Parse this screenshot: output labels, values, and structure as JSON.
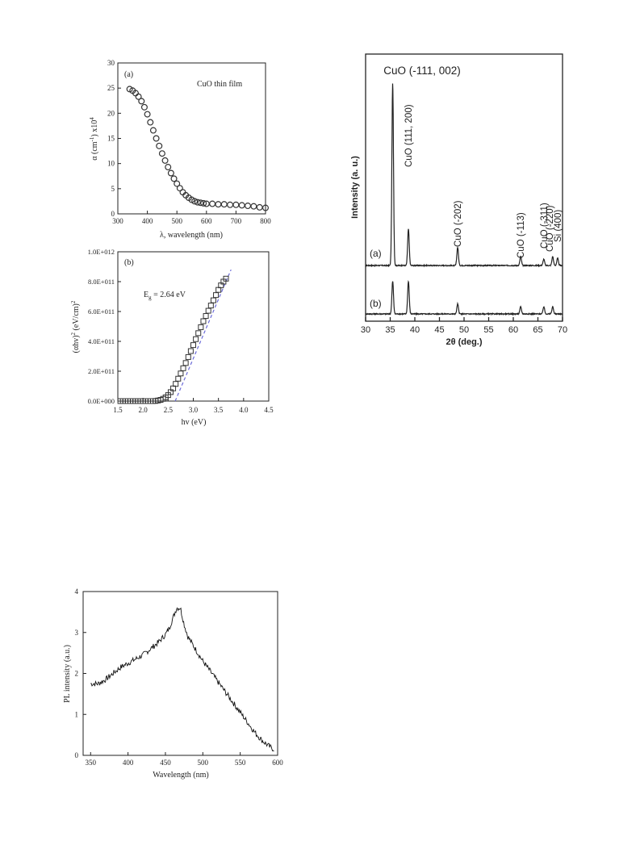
{
  "chart_data": [
    {
      "type": "scatter",
      "panel_label": "(a)",
      "annotation": "CuO thin film",
      "xlabel": "λ, wavelength (nm)",
      "ylabel_parts": [
        "α (cm",
        "-1",
        ") x10",
        "4"
      ],
      "xlim": [
        300,
        800
      ],
      "ylim": [
        0,
        30
      ],
      "xticks": [
        300,
        400,
        500,
        600,
        700,
        800
      ],
      "yticks": [
        0,
        5,
        10,
        15,
        20,
        25,
        30
      ],
      "x": [
        340,
        350,
        360,
        370,
        380,
        390,
        400,
        410,
        420,
        430,
        440,
        450,
        460,
        470,
        480,
        490,
        500,
        510,
        520,
        530,
        540,
        550,
        560,
        570,
        580,
        590,
        600,
        620,
        640,
        660,
        680,
        700,
        720,
        740,
        760,
        780,
        800
      ],
      "y": [
        24.8,
        24.5,
        24.0,
        23.3,
        22.4,
        21.2,
        19.8,
        18.2,
        16.6,
        15.0,
        13.5,
        12.0,
        10.6,
        9.3,
        8.1,
        7.0,
        6.0,
        5.1,
        4.3,
        3.7,
        3.2,
        2.8,
        2.5,
        2.3,
        2.2,
        2.1,
        2.0,
        2.0,
        1.9,
        1.9,
        1.8,
        1.8,
        1.7,
        1.6,
        1.5,
        1.3,
        1.2
      ],
      "color": "#333333"
    },
    {
      "type": "scatter",
      "panel_label": "(b)",
      "annotation_parts": [
        "E",
        "g",
        " = 2.64 eV"
      ],
      "xlabel": "hv (eV)",
      "ylabel_parts": [
        "(αhv)",
        "2",
        " (eV/cm)",
        "2"
      ],
      "xlim": [
        1.5,
        4.5
      ],
      "ylim": [
        0,
        1000000000000.0
      ],
      "xticks": [
        "1.5",
        "2.0",
        "2.5",
        "3.0",
        "3.5",
        "4.0",
        "4.5"
      ],
      "yticks": [
        "0.0E+000",
        "2.0E+011",
        "4.0E+011",
        "6.0E+011",
        "8.0E+011",
        "1.0E+012"
      ],
      "x": [
        1.55,
        1.6,
        1.65,
        1.7,
        1.75,
        1.8,
        1.85,
        1.9,
        1.95,
        2.0,
        2.05,
        2.1,
        2.15,
        2.2,
        2.25,
        2.3,
        2.35,
        2.4,
        2.45,
        2.5,
        2.55,
        2.6,
        2.65,
        2.7,
        2.75,
        2.8,
        2.85,
        2.9,
        2.95,
        3.0,
        3.05,
        3.1,
        3.15,
        3.2,
        3.25,
        3.3,
        3.35,
        3.4,
        3.45,
        3.5,
        3.55,
        3.6,
        3.65
      ],
      "y": [
        0.0,
        0.0,
        0.0,
        0.0,
        0.0,
        0.0,
        0.0,
        0.0,
        0.0,
        0.0,
        0.0,
        0.0,
        0.0,
        0.0,
        1000000000.0,
        4000000000.0,
        8000000000.0,
        15000000000.0,
        25000000000.0,
        40000000000.0,
        60000000000.0,
        85000000000.0,
        115000000000.0,
        150000000000.0,
        185000000000.0,
        220000000000.0,
        255000000000.0,
        295000000000.0,
        335000000000.0,
        375000000000.0,
        415000000000.0,
        455000000000.0,
        495000000000.0,
        535000000000.0,
        570000000000.0,
        605000000000.0,
        640000000000.0,
        675000000000.0,
        710000000000.0,
        745000000000.0,
        775000000000.0,
        800000000000.0,
        820000000000.0
      ],
      "fit_line": {
        "x": [
          2.64,
          3.75
        ],
        "y": [
          0,
          880000000000.0
        ],
        "color": "#6a6ad8"
      },
      "color": "#333333"
    },
    {
      "type": "line",
      "title": "CuO (-111, 002)",
      "xlabel_parts": [
        "2",
        "θ",
        " (deg.)"
      ],
      "ylabel": "Intensity (a. u.)",
      "xlim": [
        30,
        70
      ],
      "xticks": [
        30,
        35,
        40,
        45,
        50,
        55,
        60,
        65,
        70
      ],
      "series": [
        {
          "name": "(a)",
          "baseline": 0,
          "peaks": [
            [
              35.5,
              100
            ],
            [
              38.7,
              20
            ],
            [
              48.7,
              10
            ],
            [
              61.5,
              5
            ],
            [
              66.2,
              3.5
            ],
            [
              68.0,
              5
            ],
            [
              69.0,
              4
            ]
          ]
        },
        {
          "name": "(b)",
          "baseline": 0,
          "peaks": [
            [
              35.5,
              18
            ],
            [
              38.7,
              18
            ],
            [
              48.7,
              5.5
            ],
            [
              61.5,
              4
            ],
            [
              66.2,
              4
            ],
            [
              68.0,
              4
            ]
          ]
        }
      ],
      "annotations": [
        {
          "text": "CuO (111, 200)",
          "x": 38.7
        },
        {
          "text": "CuO (-202)",
          "x": 48.7
        },
        {
          "text": "CuO (-113)",
          "x": 61.5
        },
        {
          "text": "CuO (-311)",
          "x": 66.2
        },
        {
          "text": "CuO (-220)",
          "x": 67.4
        },
        {
          "text": "Si (400)",
          "x": 69.0
        }
      ],
      "color": "#222222"
    },
    {
      "type": "line",
      "xlabel": "Wavelength (nm)",
      "ylabel": "PL intensity (a.u.)",
      "xlim": [
        340,
        600
      ],
      "ylim": [
        0,
        4
      ],
      "xticks": [
        350,
        400,
        450,
        500,
        550,
        600
      ],
      "yticks": [
        0,
        1,
        2,
        3,
        4
      ],
      "x": [
        350,
        360,
        370,
        380,
        390,
        400,
        410,
        420,
        430,
        440,
        450,
        455,
        460,
        465,
        470,
        475,
        480,
        490,
        500,
        510,
        520,
        530,
        540,
        550,
        560,
        570,
        580,
        590,
        595
      ],
      "y": [
        1.75,
        1.75,
        1.85,
        2.0,
        2.15,
        2.25,
        2.35,
        2.45,
        2.6,
        2.75,
        2.95,
        3.1,
        3.35,
        3.6,
        3.6,
        3.2,
        2.9,
        2.6,
        2.3,
        2.05,
        1.8,
        1.55,
        1.3,
        1.05,
        0.8,
        0.55,
        0.35,
        0.2,
        0.15
      ],
      "color": "#111111"
    }
  ]
}
